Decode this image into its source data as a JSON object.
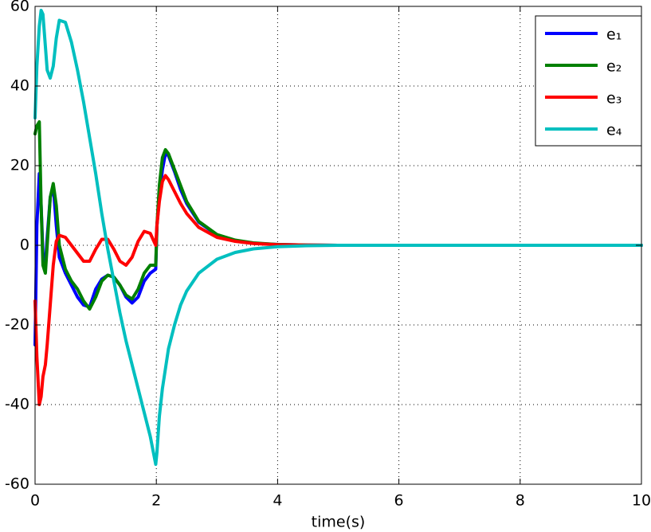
{
  "chart_data": {
    "type": "line",
    "xlabel": "time(s)",
    "x": [
      0,
      0.03,
      0.07,
      0.1,
      0.13,
      0.17,
      0.2,
      0.25,
      0.3,
      0.35,
      0.4,
      0.5,
      0.6,
      0.7,
      0.8,
      0.9,
      1.0,
      1.1,
      1.2,
      1.3,
      1.4,
      1.5,
      1.6,
      1.7,
      1.8,
      1.9,
      1.99,
      2.01,
      2.05,
      2.1,
      2.15,
      2.2,
      2.3,
      2.4,
      2.5,
      2.7,
      3.0,
      3.3,
      3.6,
      4.0,
      4.5,
      5,
      6,
      7,
      8,
      9,
      10
    ],
    "series": [
      {
        "name": "e₁",
        "color": "#0000ff",
        "values": [
          -25,
          5,
          18,
          10,
          -2,
          -5,
          2,
          12,
          15,
          5,
          -3,
          -7,
          -10,
          -13,
          -15,
          -15.5,
          -11,
          -8.5,
          -7.5,
          -8,
          -10,
          -13,
          -14.5,
          -13,
          -9,
          -7,
          -6,
          5,
          12,
          19,
          23,
          22.5,
          18.5,
          14,
          10.5,
          5.8,
          2.6,
          1.2,
          0.5,
          0.2,
          0.05,
          0,
          0,
          0,
          0,
          0,
          0
        ]
      },
      {
        "name": "e₂",
        "color": "#008000",
        "values": [
          28,
          30,
          31,
          10,
          -5,
          -7,
          0,
          12,
          15.5,
          10,
          0,
          -6,
          -9,
          -11,
          -14,
          -16,
          -13,
          -9,
          -7.5,
          -8,
          -10,
          -12.5,
          -13.5,
          -11,
          -7,
          -5,
          -5,
          5,
          15,
          22,
          24,
          23,
          19,
          15,
          11,
          6,
          2.7,
          1.3,
          0.6,
          0.2,
          0.05,
          0,
          0,
          0,
          0,
          0,
          0
        ]
      },
      {
        "name": "e₃",
        "color": "#ff0000",
        "values": [
          -14,
          -28,
          -40,
          -38,
          -33,
          -30,
          -25,
          -15,
          -5,
          1,
          2.5,
          2,
          0,
          -2,
          -4,
          -4,
          -1,
          1.5,
          1.5,
          -1,
          -4,
          -5,
          -3,
          1,
          3.5,
          3,
          0,
          5,
          11,
          16,
          17.5,
          16.5,
          13.5,
          10.5,
          8,
          4.5,
          2,
          1,
          0.45,
          0.15,
          0.04,
          0,
          0,
          0,
          0,
          0,
          0
        ]
      },
      {
        "name": "e₄",
        "color": "#00bfbf",
        "values": [
          32,
          45,
          55,
          59,
          58,
          50,
          44,
          42,
          45,
          52,
          56.5,
          56,
          51,
          44,
          36,
          27,
          18,
          8,
          -1,
          -9,
          -17,
          -24,
          -30,
          -36,
          -42,
          -48,
          -55,
          -52,
          -43,
          -36,
          -31,
          -26,
          -20,
          -15,
          -11.5,
          -7,
          -3.5,
          -1.8,
          -0.9,
          -0.35,
          -0.1,
          0,
          0,
          0,
          0,
          0,
          0
        ]
      }
    ],
    "xlim": [
      0,
      10
    ],
    "ylim": [
      -60,
      60
    ],
    "xticks": [
      0,
      2,
      4,
      6,
      8,
      10
    ],
    "yticks": [
      -60,
      -40,
      -20,
      0,
      20,
      40,
      60
    ],
    "grid": true,
    "legend": "upper right"
  }
}
